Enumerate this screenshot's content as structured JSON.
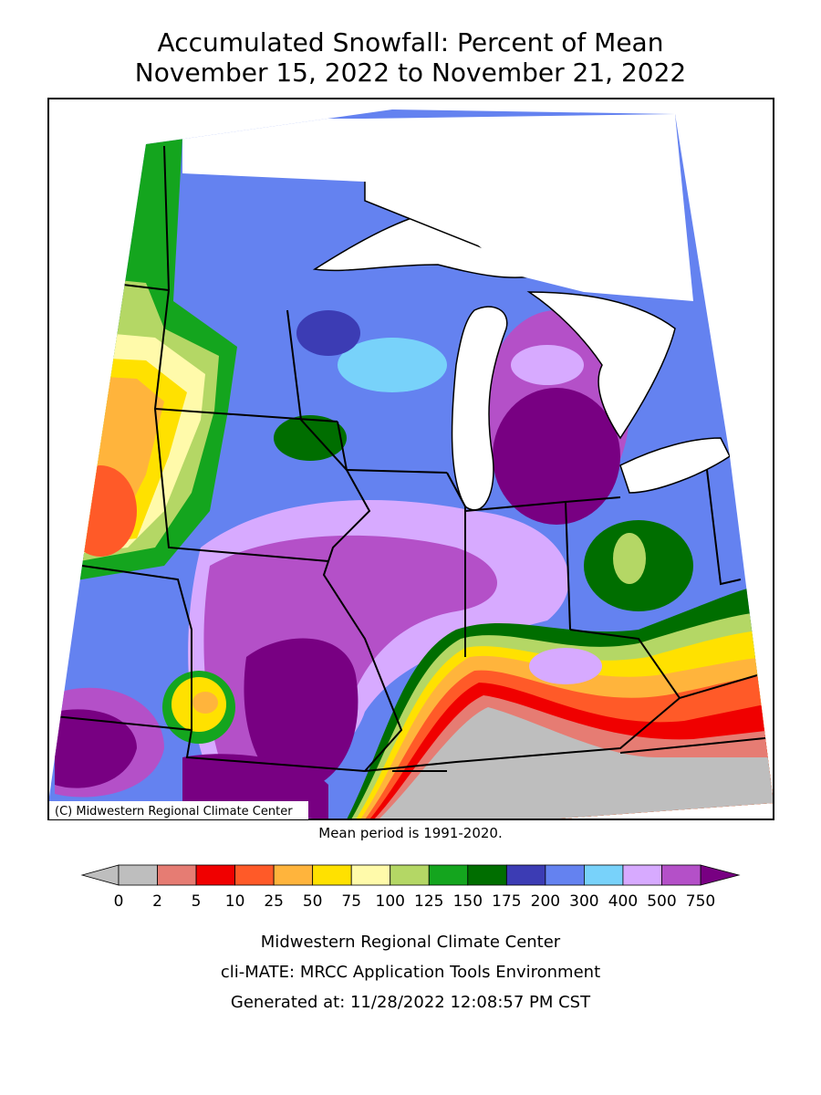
{
  "header": {
    "title": "Accumulated Snowfall: Percent of Mean",
    "subtitle": "November 15, 2022 to November 21, 2022"
  },
  "map": {
    "credit": "(C) Midwestern Regional Climate Center",
    "note": "Mean period is 1991-2020."
  },
  "legend": {
    "ticks": [
      0,
      2,
      5,
      10,
      25,
      50,
      75,
      100,
      125,
      150,
      175,
      200,
      300,
      400,
      500,
      750
    ],
    "below_color": "#bebebe",
    "above_color": "#780082",
    "colors": [
      "#bebebe",
      "#e67c73",
      "#f00000",
      "#ff5a28",
      "#ffb43c",
      "#ffe100",
      "#fffaaa",
      "#b4d765",
      "#14a51e",
      "#006e00",
      "#3c3cb4",
      "#6482f0",
      "#78d2fa",
      "#d7aaff",
      "#b450c8"
    ]
  },
  "footer": {
    "lines": [
      "Midwestern Regional Climate Center",
      "cli-MATE: MRCC Application Tools Environment",
      "Generated at: 11/28/2022 12:08:57 PM CST"
    ]
  }
}
